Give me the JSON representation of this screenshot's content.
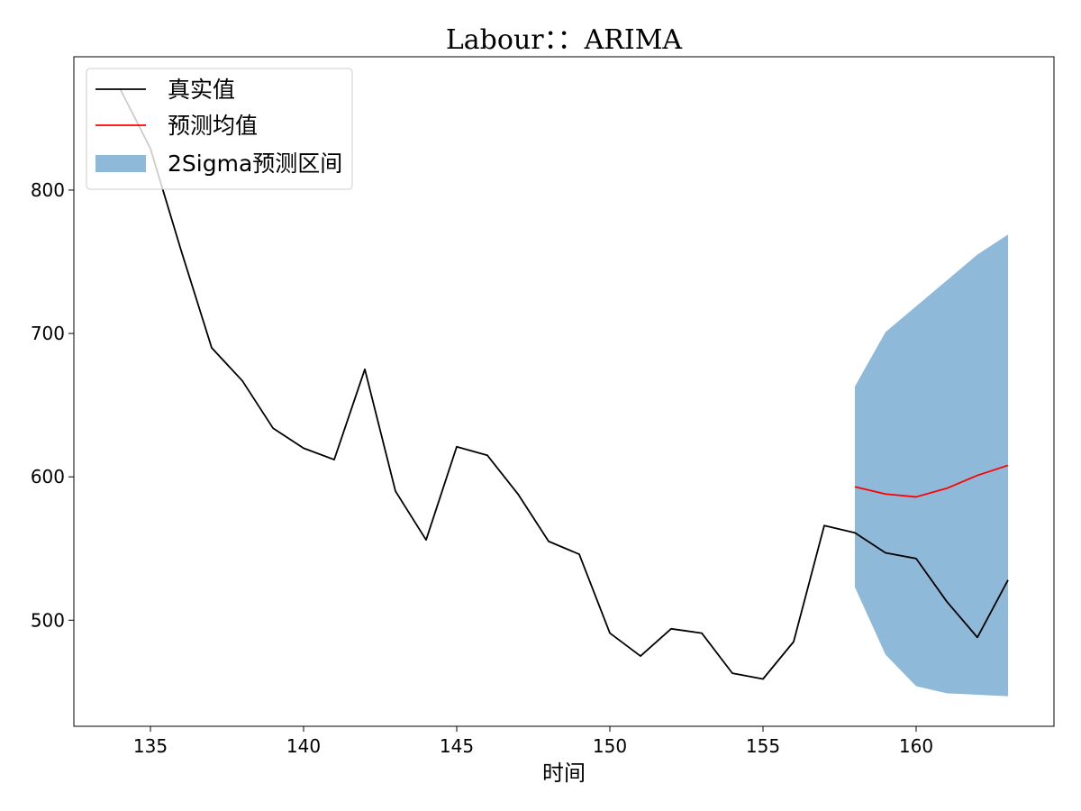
{
  "chart_data": {
    "type": "line",
    "title": "Labour：：ARIMA",
    "xlabel": "时间",
    "ylabel": "",
    "xlim": [
      132.5,
      164.5
    ],
    "ylim": [
      426,
      893
    ],
    "xticks": [
      135,
      140,
      145,
      150,
      155,
      160
    ],
    "yticks": [
      500,
      600,
      700,
      800
    ],
    "grid": false,
    "legend_position": "top-left",
    "series": [
      {
        "name": "真实值",
        "kind": "line",
        "color": "#000000",
        "x": [
          134,
          135,
          136,
          137,
          138,
          139,
          140,
          141,
          142,
          143,
          144,
          145,
          146,
          147,
          148,
          149,
          150,
          151,
          152,
          153,
          154,
          155,
          156,
          157,
          158,
          159,
          160,
          161,
          162,
          163
        ],
        "y": [
          871,
          829,
          758,
          690,
          667,
          634,
          620,
          612,
          675,
          590,
          556,
          621,
          615,
          588,
          555,
          546,
          491,
          475,
          494,
          491,
          463,
          459,
          485,
          566,
          561,
          547,
          543,
          513,
          488,
          528
        ]
      },
      {
        "name": "预测均值",
        "kind": "line",
        "color": "#ff0000",
        "x": [
          158,
          159,
          160,
          161,
          162,
          163
        ],
        "y": [
          593,
          588,
          586,
          592,
          601,
          608
        ]
      },
      {
        "name": "2Sigma预测区间",
        "kind": "band",
        "color": "#8fb9d9",
        "x": [
          158,
          159,
          160,
          161,
          162,
          163
        ],
        "upper": [
          663,
          701,
          719,
          737,
          755,
          769
        ],
        "lower": [
          523,
          476,
          454,
          449,
          448,
          447
        ]
      }
    ]
  }
}
